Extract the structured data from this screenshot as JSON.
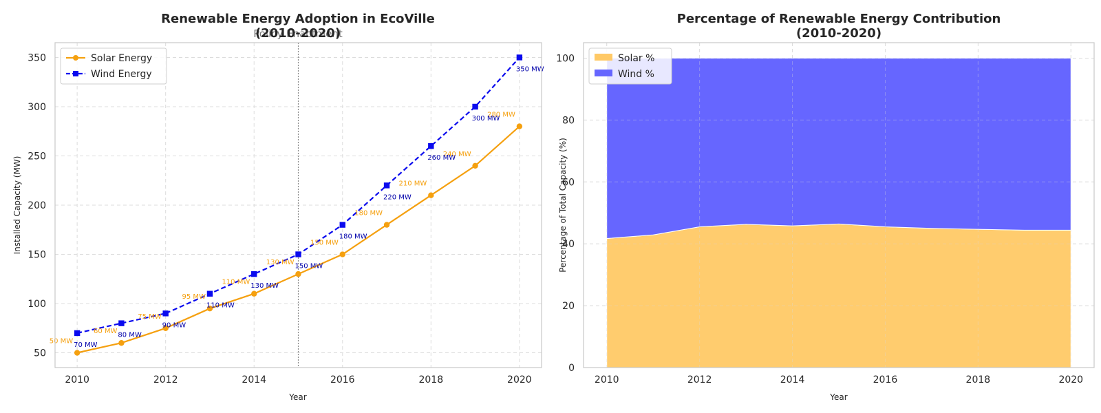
{
  "chart_data": [
    {
      "type": "line",
      "title": "Renewable Energy Adoption in EcoVille",
      "subtitle": "(2010-2020)",
      "xlabel": "Year",
      "ylabel": "Installed Capacity (MW)",
      "x": [
        2010,
        2011,
        2012,
        2013,
        2014,
        2015,
        2016,
        2017,
        2018,
        2019,
        2020
      ],
      "xlim": [
        2009.5,
        2020.5
      ],
      "ylim": [
        35,
        365
      ],
      "xticks": [
        2010,
        2012,
        2014,
        2016,
        2018,
        2020
      ],
      "yticks": [
        50,
        100,
        150,
        200,
        250,
        300,
        350
      ],
      "grid": true,
      "legend_position": "top-left",
      "series": [
        {
          "name": "Solar Energy",
          "color": "#f5a00f",
          "marker": "circle",
          "line_style": "solid",
          "values": [
            50,
            60,
            75,
            95,
            110,
            130,
            150,
            180,
            210,
            240,
            280
          ],
          "labels": [
            "50 MW",
            "60 MW",
            "75 MW",
            "95 MW",
            "110 MW",
            "130 MW",
            "150 MW",
            "180 MW",
            "210 MW",
            "240 MW",
            "280 MW"
          ]
        },
        {
          "name": "Wind Energy",
          "color": "#0a0aee",
          "marker": "square",
          "line_style": "dashed",
          "values": [
            70,
            80,
            90,
            110,
            130,
            150,
            180,
            220,
            260,
            300,
            350
          ],
          "labels": [
            "70 MW",
            "80 MW",
            "90 MW",
            "110 MW",
            "130 MW",
            "150 MW",
            "180 MW",
            "220 MW",
            "260 MW",
            "300 MW",
            "350 MW"
          ]
        }
      ],
      "annotations": [
        {
          "text": "Policy Enactment",
          "x": 2015,
          "style": "dotted vertical line"
        }
      ]
    },
    {
      "type": "area",
      "stacked": true,
      "title": "Percentage of Renewable Energy Contribution",
      "subtitle": "(2010-2020)",
      "xlabel": "Year",
      "ylabel": "Percentage of Total Capacity (%)",
      "x": [
        2010,
        2011,
        2012,
        2013,
        2014,
        2015,
        2016,
        2017,
        2018,
        2019,
        2020
      ],
      "xlim": [
        2009.5,
        2020.5
      ],
      "ylim": [
        0,
        105
      ],
      "xticks": [
        2010,
        2012,
        2014,
        2016,
        2018,
        2020
      ],
      "yticks": [
        0,
        20,
        40,
        60,
        80,
        100
      ],
      "grid": true,
      "legend_position": "top-left",
      "series": [
        {
          "name": "Solar %",
          "color": "#ffc966",
          "values": [
            41.7,
            42.9,
            45.5,
            46.3,
            45.8,
            46.4,
            45.5,
            45.0,
            44.7,
            44.4,
            44.4
          ]
        },
        {
          "name": "Wind %",
          "color": "#6666ff",
          "values": [
            58.3,
            57.1,
            54.5,
            53.7,
            54.2,
            53.6,
            54.5,
            55.0,
            55.3,
            55.6,
            55.6
          ]
        }
      ]
    }
  ]
}
